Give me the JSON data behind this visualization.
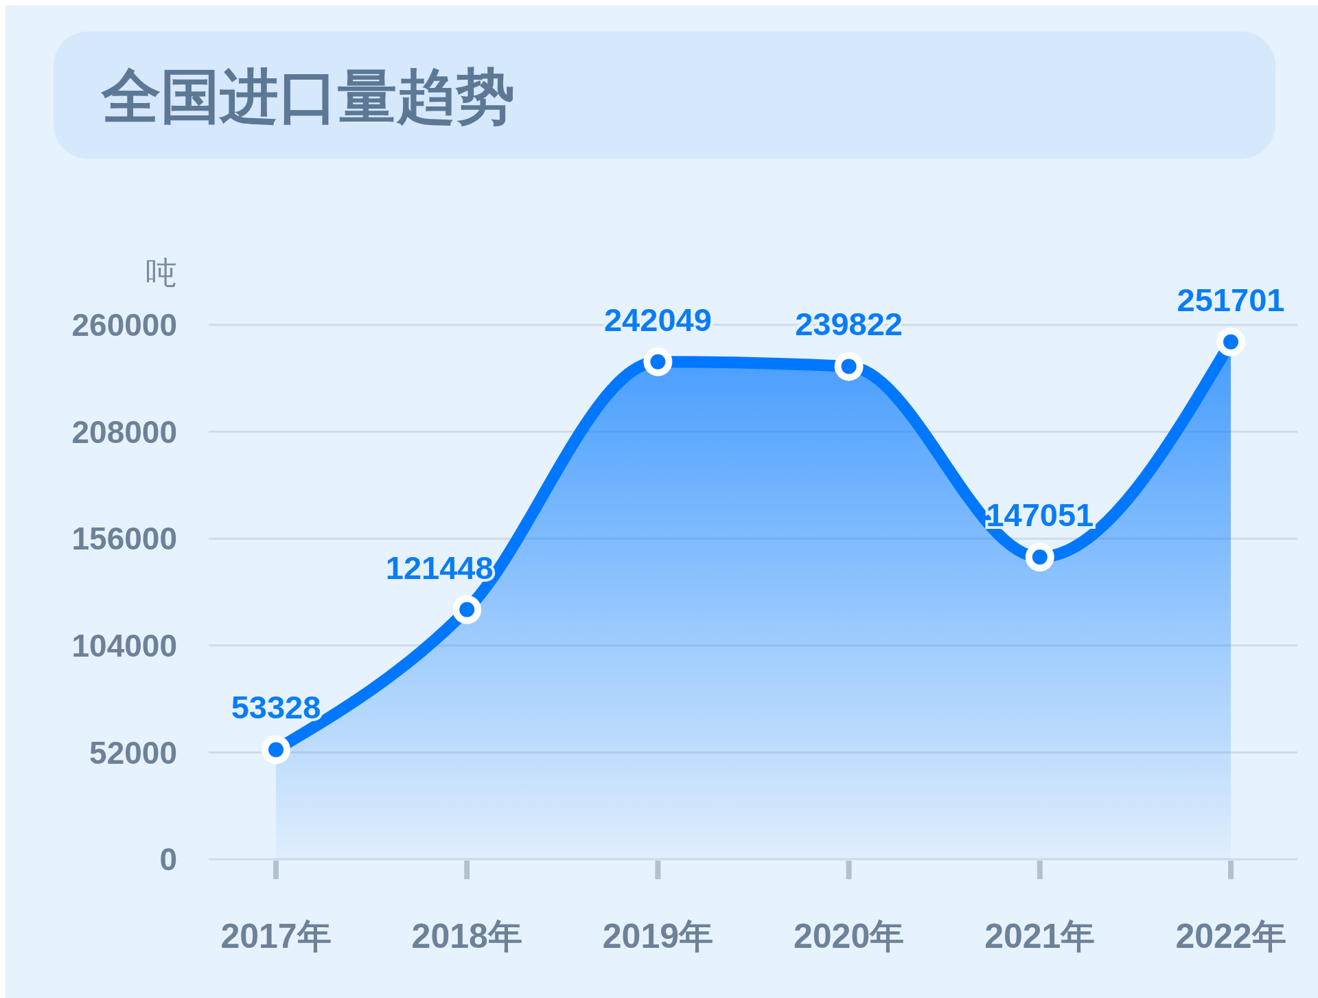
{
  "chart_data": {
    "type": "area",
    "title": "全国进口量趋势",
    "ylabel": "吨",
    "categories": [
      "2017年",
      "2018年",
      "2019年",
      "2020年",
      "2021年",
      "2022年"
    ],
    "series": [
      {
        "color": "#0077ff",
        "values": [
          53328,
          121448,
          242049,
          239822,
          147051,
          251701
        ]
      }
    ],
    "ylim": [
      0,
      260000
    ],
    "yticks": [
      0,
      52000,
      104000,
      156000,
      208000,
      260000
    ],
    "grid": "y",
    "data_labels": true,
    "marker": "circle"
  }
}
